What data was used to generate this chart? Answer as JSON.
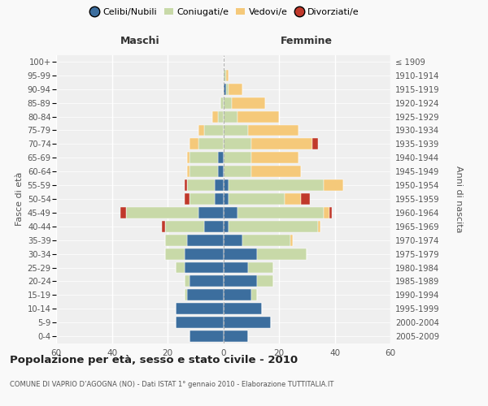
{
  "age_groups": [
    "100+",
    "95-99",
    "90-94",
    "85-89",
    "80-84",
    "75-79",
    "70-74",
    "65-69",
    "60-64",
    "55-59",
    "50-54",
    "45-49",
    "40-44",
    "35-39",
    "30-34",
    "25-29",
    "20-24",
    "15-19",
    "10-14",
    "5-9",
    "0-4"
  ],
  "birth_years": [
    "≤ 1909",
    "1910-1914",
    "1915-1919",
    "1920-1924",
    "1925-1929",
    "1930-1934",
    "1935-1939",
    "1940-1944",
    "1945-1949",
    "1950-1954",
    "1955-1959",
    "1960-1964",
    "1965-1969",
    "1970-1974",
    "1975-1979",
    "1980-1984",
    "1985-1989",
    "1990-1994",
    "1995-1999",
    "2000-2004",
    "2005-2009"
  ],
  "males_celibi": [
    0,
    0,
    0,
    0,
    0,
    0,
    0,
    2,
    2,
    3,
    3,
    9,
    7,
    13,
    14,
    14,
    12,
    13,
    17,
    17,
    12
  ],
  "males_coniugati": [
    0,
    0,
    0,
    1,
    2,
    7,
    9,
    10,
    10,
    10,
    9,
    26,
    14,
    8,
    7,
    3,
    2,
    1,
    0,
    0,
    0
  ],
  "males_vedovi": [
    0,
    0,
    0,
    0,
    2,
    2,
    3,
    1,
    1,
    0,
    0,
    0,
    0,
    0,
    0,
    0,
    0,
    0,
    0,
    0,
    0
  ],
  "males_divorziati": [
    0,
    0,
    0,
    0,
    0,
    0,
    0,
    0,
    0,
    1,
    2,
    2,
    1,
    0,
    0,
    0,
    0,
    0,
    0,
    0,
    0
  ],
  "females_nubili": [
    0,
    0,
    1,
    0,
    0,
    0,
    0,
    0,
    0,
    2,
    2,
    5,
    2,
    7,
    12,
    9,
    12,
    10,
    14,
    17,
    9
  ],
  "females_coniugate": [
    0,
    1,
    1,
    3,
    5,
    9,
    10,
    10,
    10,
    34,
    20,
    31,
    32,
    17,
    18,
    9,
    6,
    2,
    0,
    0,
    0
  ],
  "females_vedove": [
    0,
    1,
    5,
    12,
    15,
    18,
    22,
    17,
    18,
    7,
    6,
    2,
    1,
    1,
    0,
    0,
    0,
    0,
    0,
    0,
    0
  ],
  "females_divorziate": [
    0,
    0,
    0,
    0,
    0,
    0,
    2,
    0,
    0,
    0,
    3,
    1,
    0,
    0,
    0,
    0,
    0,
    0,
    0,
    0,
    0
  ],
  "color_celibi": "#3c6e9e",
  "color_coniugati": "#c8d9a8",
  "color_vedovi": "#f5c97a",
  "color_divorziati": "#c0392b",
  "xlim": 60,
  "title": "Popolazione per età, sesso e stato civile - 2010",
  "subtitle": "COMUNE DI VAPRIO D’AGOGNA (NO) - Dati ISTAT 1° gennaio 2010 - Elaborazione TUTTITALIA.IT",
  "ylabel_left": "Fasce di età",
  "ylabel_right": "Anni di nascita",
  "legend_labels": [
    "Celibi/Nubili",
    "Coniugati/e",
    "Vedovi/e",
    "Divorziati/e"
  ],
  "label_maschi": "Maschi",
  "label_femmine": "Femmine",
  "bg_color": "#f9f9f9",
  "plot_bg": "#efefef",
  "text_color": "#555555",
  "grid_color": "#ffffff"
}
